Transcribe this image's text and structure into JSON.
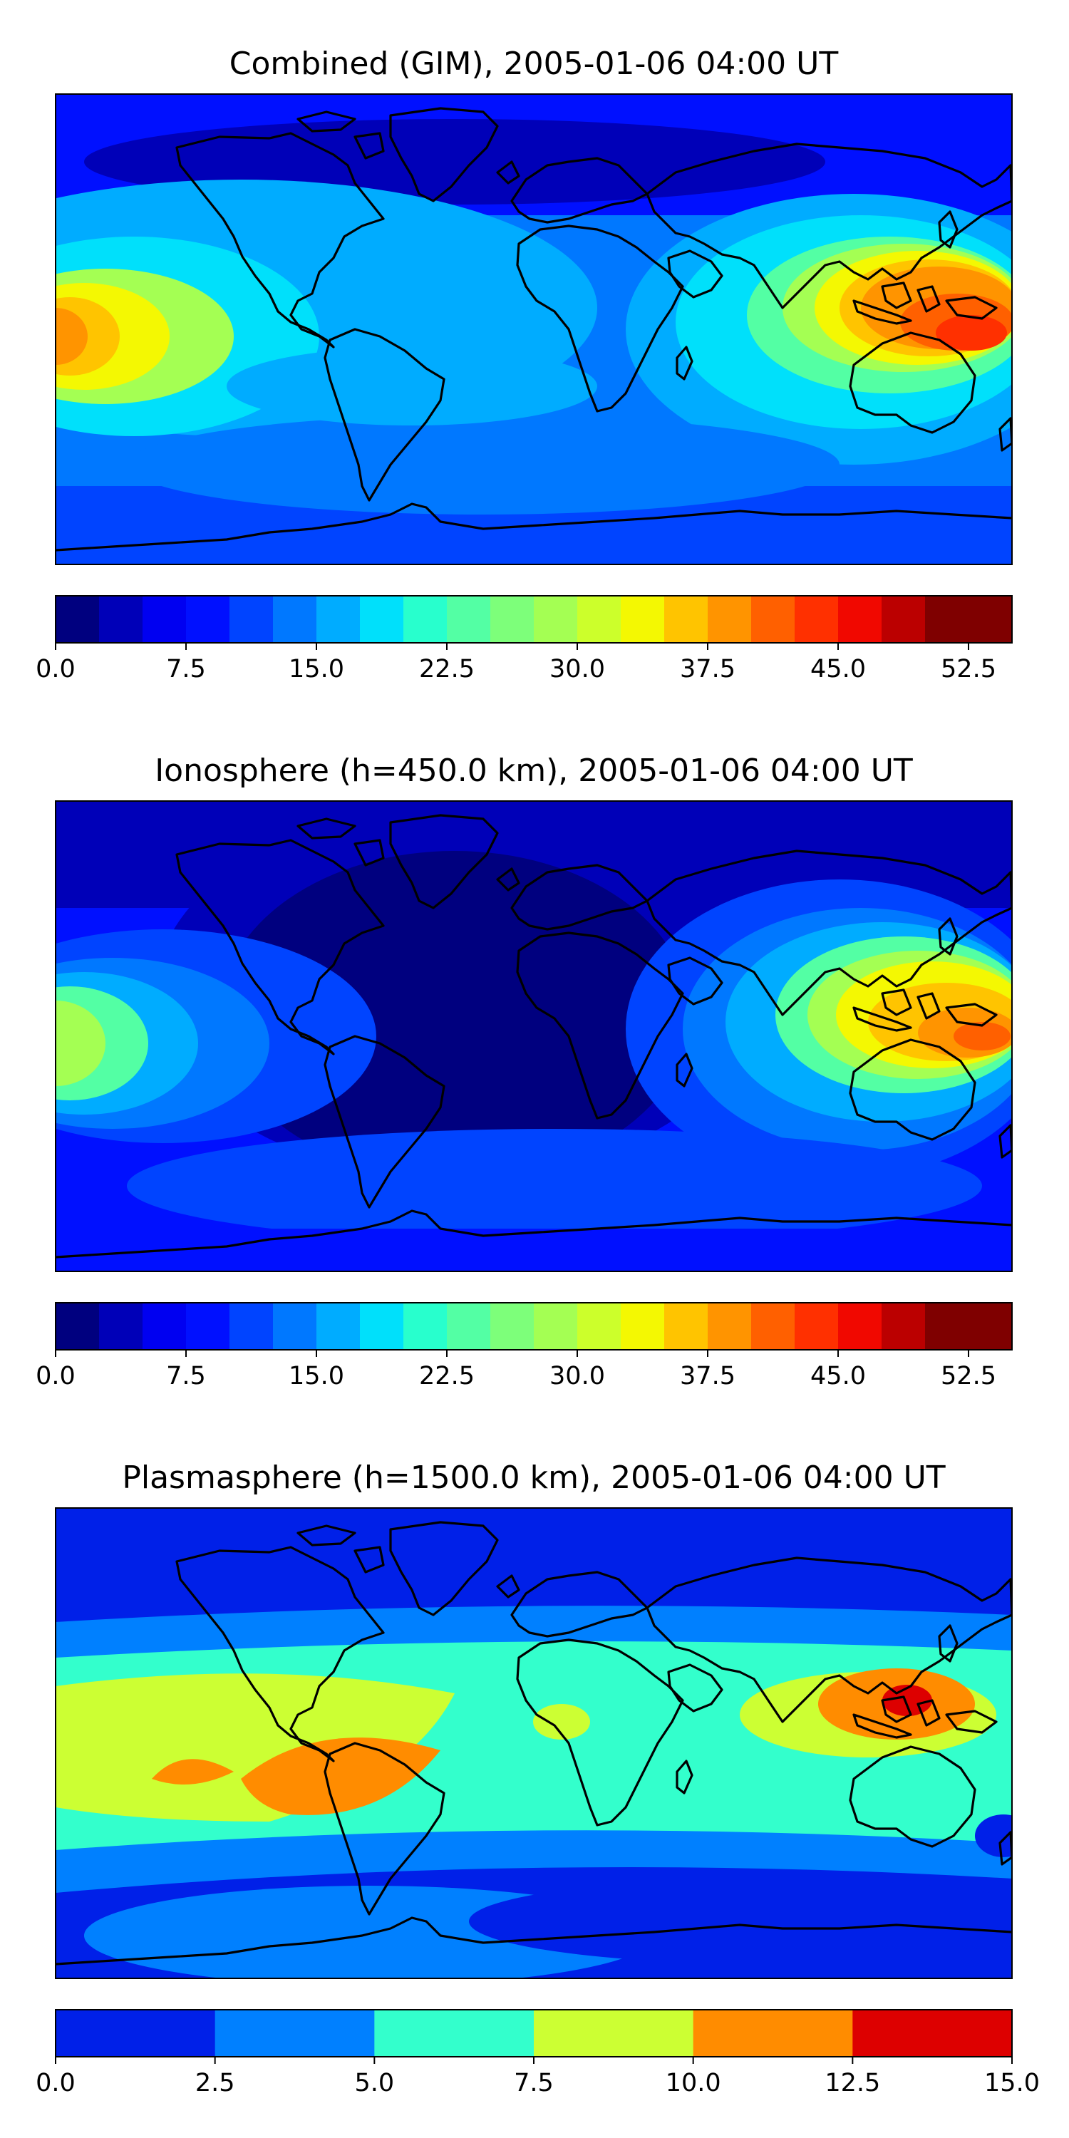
{
  "panels": [
    {
      "title": "Combined (GIM), 2005-01-06 04:00 UT",
      "colorbar": {
        "levels": [
          0.0,
          2.5,
          5.0,
          7.5,
          10.0,
          12.5,
          15.0,
          17.5,
          20.0,
          22.5,
          25.0,
          27.5,
          30.0,
          32.5,
          35.0,
          37.5,
          40.0,
          42.5,
          45.0,
          47.5,
          50.0,
          52.5,
          55.0
        ],
        "colors": [
          "#00007f",
          "#0000b8",
          "#0000f1",
          "#0010ff",
          "#0044ff",
          "#0078ff",
          "#00acff",
          "#00e0fb",
          "#28ffcd",
          "#53ffa4",
          "#7dff7a",
          "#a4ff53",
          "#ccff2b",
          "#f4f802",
          "#ffc400",
          "#ff9400",
          "#ff6000",
          "#ff3000",
          "#f10800",
          "#bb0000",
          "#7f0000",
          "#7f0000"
        ],
        "tick_labels": [
          "0.0",
          "7.5",
          "15.0",
          "22.5",
          "30.0",
          "37.5",
          "45.0",
          "52.5"
        ]
      }
    },
    {
      "title": "Ionosphere  (h=450.0 km), 2005-01-06 04:00 UT",
      "colorbar": {
        "levels": [
          0.0,
          2.5,
          5.0,
          7.5,
          10.0,
          12.5,
          15.0,
          17.5,
          20.0,
          22.5,
          25.0,
          27.5,
          30.0,
          32.5,
          35.0,
          37.5,
          40.0,
          42.5,
          45.0,
          47.5,
          50.0,
          52.5,
          55.0
        ],
        "colors": [
          "#00007f",
          "#0000b8",
          "#0000f1",
          "#0010ff",
          "#0044ff",
          "#0078ff",
          "#00acff",
          "#00e0fb",
          "#28ffcd",
          "#53ffa4",
          "#7dff7a",
          "#a4ff53",
          "#ccff2b",
          "#f4f802",
          "#ffc400",
          "#ff9400",
          "#ff6000",
          "#ff3000",
          "#f10800",
          "#bb0000",
          "#7f0000",
          "#7f0000"
        ],
        "tick_labels": [
          "0.0",
          "7.5",
          "15.0",
          "22.5",
          "30.0",
          "37.5",
          "45.0",
          "52.5"
        ]
      }
    },
    {
      "title": "Plasmasphere (h=1500.0 km), 2005-01-06 04:00 UT",
      "colorbar": {
        "levels": [
          0.0,
          2.5,
          5.0,
          7.5,
          10.0,
          12.5,
          15.0
        ],
        "colors": [
          "#0020e8",
          "#0080ff",
          "#33ffcc",
          "#ccff33",
          "#ff8c00",
          "#dd0000"
        ],
        "tick_labels": [
          "0.0",
          "2.5",
          "5.0",
          "7.5",
          "10.0",
          "12.5",
          "15.0"
        ]
      }
    }
  ]
}
